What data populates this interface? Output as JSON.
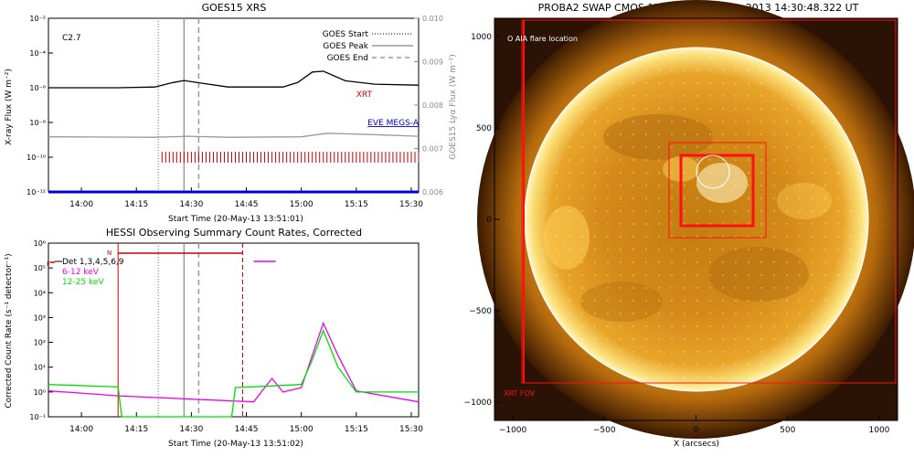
{
  "chart_data": [
    {
      "type": "line",
      "title": "GOES15 XRS",
      "xlabel": "Start Time (20-May-13 13:51:01)",
      "ylabel_left": "X-ray Flux (W m⁻²)",
      "ylabel_right": "GOES15 Lyα Flux (W m⁻²)",
      "x_ticks": [
        "14:00",
        "14:15",
        "14:30",
        "14:45",
        "15:00",
        "15:15",
        "15:30"
      ],
      "xlim": [
        "13:51",
        "15:32"
      ],
      "ylim_left": [
        1e-12,
        0.01
      ],
      "y_scale_left": "log",
      "y_ticks_left": [
        "10⁻²",
        "10⁻⁴",
        "10⁻⁶",
        "10⁻⁸",
        "10⁻¹⁰",
        "10⁻¹²"
      ],
      "ylim_right": [
        0.006,
        0.01
      ],
      "y_ticks_right": [
        "0.010",
        "0.009",
        "0.008",
        "0.007",
        "0.006"
      ],
      "annotation": "C2.7",
      "vertical_lines": [
        {
          "name": "GOES Start",
          "time": "14:21",
          "style": "dotted"
        },
        {
          "name": "GOES Peak",
          "time": "14:28",
          "style": "solid"
        },
        {
          "name": "GOES End",
          "time": "14:32",
          "style": "dashed"
        }
      ],
      "legend": [
        "GOES Start",
        "GOES Peak",
        "GOES End"
      ],
      "series": [
        {
          "name": "XRT",
          "color": "#cc0000",
          "x": [
            "13:51",
            "15:32"
          ],
          "style": "tick marks",
          "y": [
            1e-10,
            1e-10
          ]
        },
        {
          "name": "EVE MEGS-A",
          "color": "#0000cc",
          "x": [
            "13:51",
            "15:32"
          ],
          "y": [
            1e-12,
            1e-12
          ]
        },
        {
          "name": "",
          "color": "#000000",
          "x": [
            "13:51",
            "14:10",
            "14:20",
            "14:25",
            "14:28",
            "14:33",
            "14:40",
            "14:55",
            "14:59",
            "15:03",
            "15:06",
            "15:12",
            "15:20",
            "15:32"
          ],
          "y": [
            1e-06,
            1e-06,
            1.1e-06,
            2e-06,
            2.6e-06,
            1.8e-06,
            1.1e-06,
            1.1e-06,
            2e-06,
            8e-06,
            9e-06,
            2.5e-06,
            1.6e-06,
            1.4e-06
          ]
        },
        {
          "name": "",
          "color": "#999999",
          "x": [
            "13:51",
            "14:20",
            "14:29",
            "14:40",
            "15:00",
            "15:07",
            "15:20",
            "15:32"
          ],
          "y": [
            1.5e-09,
            1.4e-09,
            1.6e-09,
            1.4e-09,
            1.5e-09,
            2.4e-09,
            2e-09,
            1.6e-09
          ]
        }
      ]
    },
    {
      "type": "line",
      "title": "HESSI Observing Summary Count Rates, Corrected",
      "xlabel": "Start Time (20-May-13 13:51:02)",
      "ylabel": "Corrected Count Rate (s⁻¹ detector⁻¹)",
      "x_ticks": [
        "14:00",
        "14:15",
        "14:30",
        "14:45",
        "15:00",
        "15:15",
        "15:30"
      ],
      "xlim": [
        "13:51",
        "15:32"
      ],
      "y_scale": "log",
      "ylim": [
        0.1,
        1000000.0
      ],
      "y_ticks": [
        "10⁶",
        "10⁵",
        "10⁴",
        "10³",
        "10²",
        "10¹",
        "10⁰",
        "10⁻¹"
      ],
      "legend_header": "Det 1,3,4,5,6,9",
      "markers": [
        "F",
        "N"
      ],
      "series": [
        {
          "name": "6-12 keV",
          "color": "#ee00ee",
          "x": [
            "13:51",
            "14:00",
            "14:10",
            "14:47",
            "14:50",
            "14:52",
            "14:55",
            "15:00",
            "15:03",
            "15:06",
            "15:10",
            "15:15",
            "15:32"
          ],
          "y": [
            1.1,
            0.9,
            0.7,
            0.4,
            1.5,
            3.5,
            1.0,
            1.5,
            30,
            600,
            30,
            1.1,
            0.4
          ]
        },
        {
          "name": "12-25 keV",
          "color": "#00dd00",
          "x": [
            "13:51",
            "14:10",
            "14:11",
            "14:41",
            "14:42",
            "15:00",
            "15:03",
            "15:06",
            "15:10",
            "15:15",
            "15:32"
          ],
          "y": [
            2,
            1.6,
            0.1,
            0.1,
            1.5,
            2,
            20,
            300,
            10,
            1,
            1
          ]
        }
      ]
    },
    {
      "type": "heatmap",
      "title": "PROBA2 SWAP CMOS 1Kx1K 174 20-May-2013 14:30:48.322 UT",
      "xlabel": "X (arcsecs)",
      "ylabel": "",
      "x_ticks": [
        "−1000",
        "−500",
        "0",
        "500",
        "1000"
      ],
      "y_ticks": [
        "1000",
        "500",
        "0",
        "−500",
        "−1000"
      ],
      "xlim": [
        -1100,
        1100
      ],
      "ylim": [
        -1100,
        1100
      ],
      "labels": [
        "O AIA flare location",
        "XRT FOV"
      ]
    }
  ]
}
